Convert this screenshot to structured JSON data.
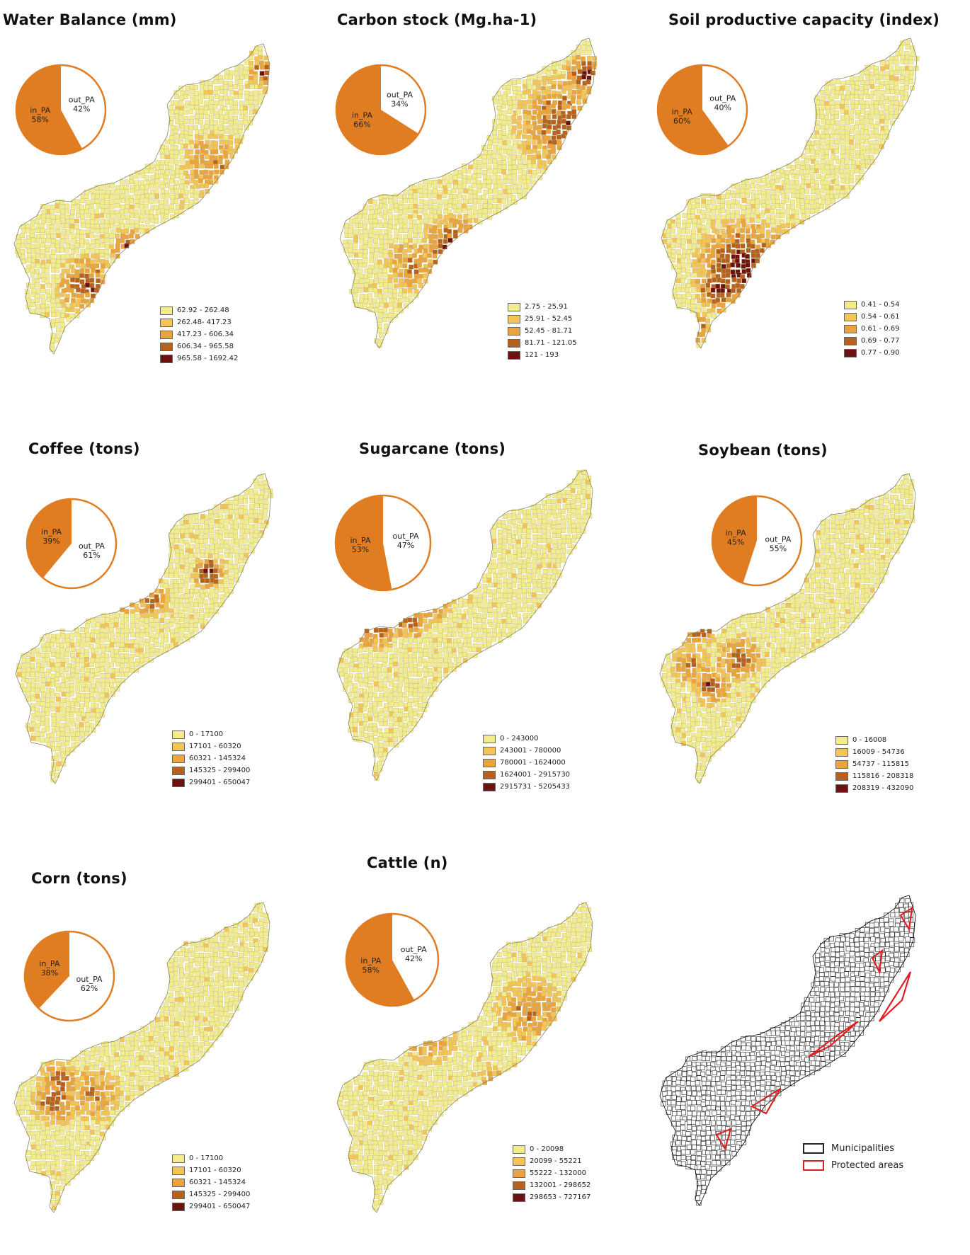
{
  "colors": {
    "class_fills": [
      "#f3ec8c",
      "#f4c556",
      "#eba33d",
      "#b8601d",
      "#6e1111"
    ],
    "in_pa": "#e07d22",
    "out_pa": "#ffffff",
    "municipality_outline": "#222222",
    "protected_area_outline": "#e02020"
  },
  "panels": [
    {
      "title": "Water Balance (mm)",
      "pie": {
        "in_label": "in_PA",
        "in_pct": "58%",
        "in_value": 58,
        "out_label": "out_PA",
        "out_pct": "42%",
        "out_value": 42
      },
      "legend": [
        "62.92 - 262.48",
        "262.48- 417.23",
        "417.23 - 606.34",
        "606.34 - 965.58",
        "965.58 - 1692.42"
      ]
    },
    {
      "title": "Carbon stock (Mg.ha-1)",
      "pie": {
        "in_label": "in_PA",
        "in_pct": "66%",
        "in_value": 66,
        "out_label": "out_PA",
        "out_pct": "34%",
        "out_value": 34
      },
      "legend": [
        "2.75 - 25.91",
        "25.91 - 52.45",
        "52.45 - 81.71",
        "81.71 - 121.05",
        "121 - 193"
      ]
    },
    {
      "title": "Soil productive capacity (index)",
      "pie": {
        "in_label": "in_PA",
        "in_pct": "60%",
        "in_value": 60,
        "out_label": "out_PA",
        "out_pct": "40%",
        "out_value": 40
      },
      "legend": [
        "0.41 - 0.54",
        "0.54 - 0.61",
        "0.61 - 0.69",
        "0.69 - 0.77",
        "0.77 - 0.90"
      ]
    },
    {
      "title": "Coffee (tons)",
      "pie": {
        "in_label": "in_PA",
        "in_pct": "39%",
        "in_value": 39,
        "out_label": "out_PA",
        "out_pct": "61%",
        "out_value": 61
      },
      "legend": [
        "0 - 17100",
        "17101 - 60320",
        "60321 - 145324",
        "145325 - 299400",
        "299401 - 650047"
      ]
    },
    {
      "title": "Sugarcane (tons)",
      "pie": {
        "in_label": "in_PA",
        "in_pct": "53%",
        "in_value": 53,
        "out_label": "out_PA",
        "out_pct": "47%",
        "out_value": 47
      },
      "legend": [
        "0 - 243000",
        "243001 - 780000",
        "780001 - 1624000",
        "1624001 - 2915730",
        "2915731 - 5205433"
      ]
    },
    {
      "title": "Soybean (tons)",
      "pie": {
        "in_label": "in_PA",
        "in_pct": "45%",
        "in_value": 45,
        "out_label": "out_PA",
        "out_pct": "55%",
        "out_value": 55
      },
      "legend": [
        "0 - 16008",
        "16009 - 54736",
        "54737 - 115815",
        "115816 - 208318",
        "208319 - 432090"
      ]
    },
    {
      "title": "Corn (tons)",
      "pie": {
        "in_label": "in_PA",
        "in_pct": "38%",
        "in_value": 38,
        "out_label": "out_PA",
        "out_pct": "62%",
        "out_value": 62
      },
      "legend": [
        "0 - 17100",
        "17101 - 60320",
        "60321 - 145324",
        "145325 - 299400",
        "299401 - 650047"
      ]
    },
    {
      "title": "Cattle (n)",
      "pie": {
        "in_label": "in_PA",
        "in_pct": "58%",
        "in_value": 58,
        "out_label": "out_PA",
        "out_pct": "42%",
        "out_value": 42
      },
      "legend": [
        "0 - 20098",
        "20099 - 55221",
        "55222 - 132000",
        "132001 - 298652",
        "298653 - 727167"
      ]
    }
  ],
  "reference_map": {
    "legend": [
      "Municipalities",
      "Protected areas"
    ]
  }
}
